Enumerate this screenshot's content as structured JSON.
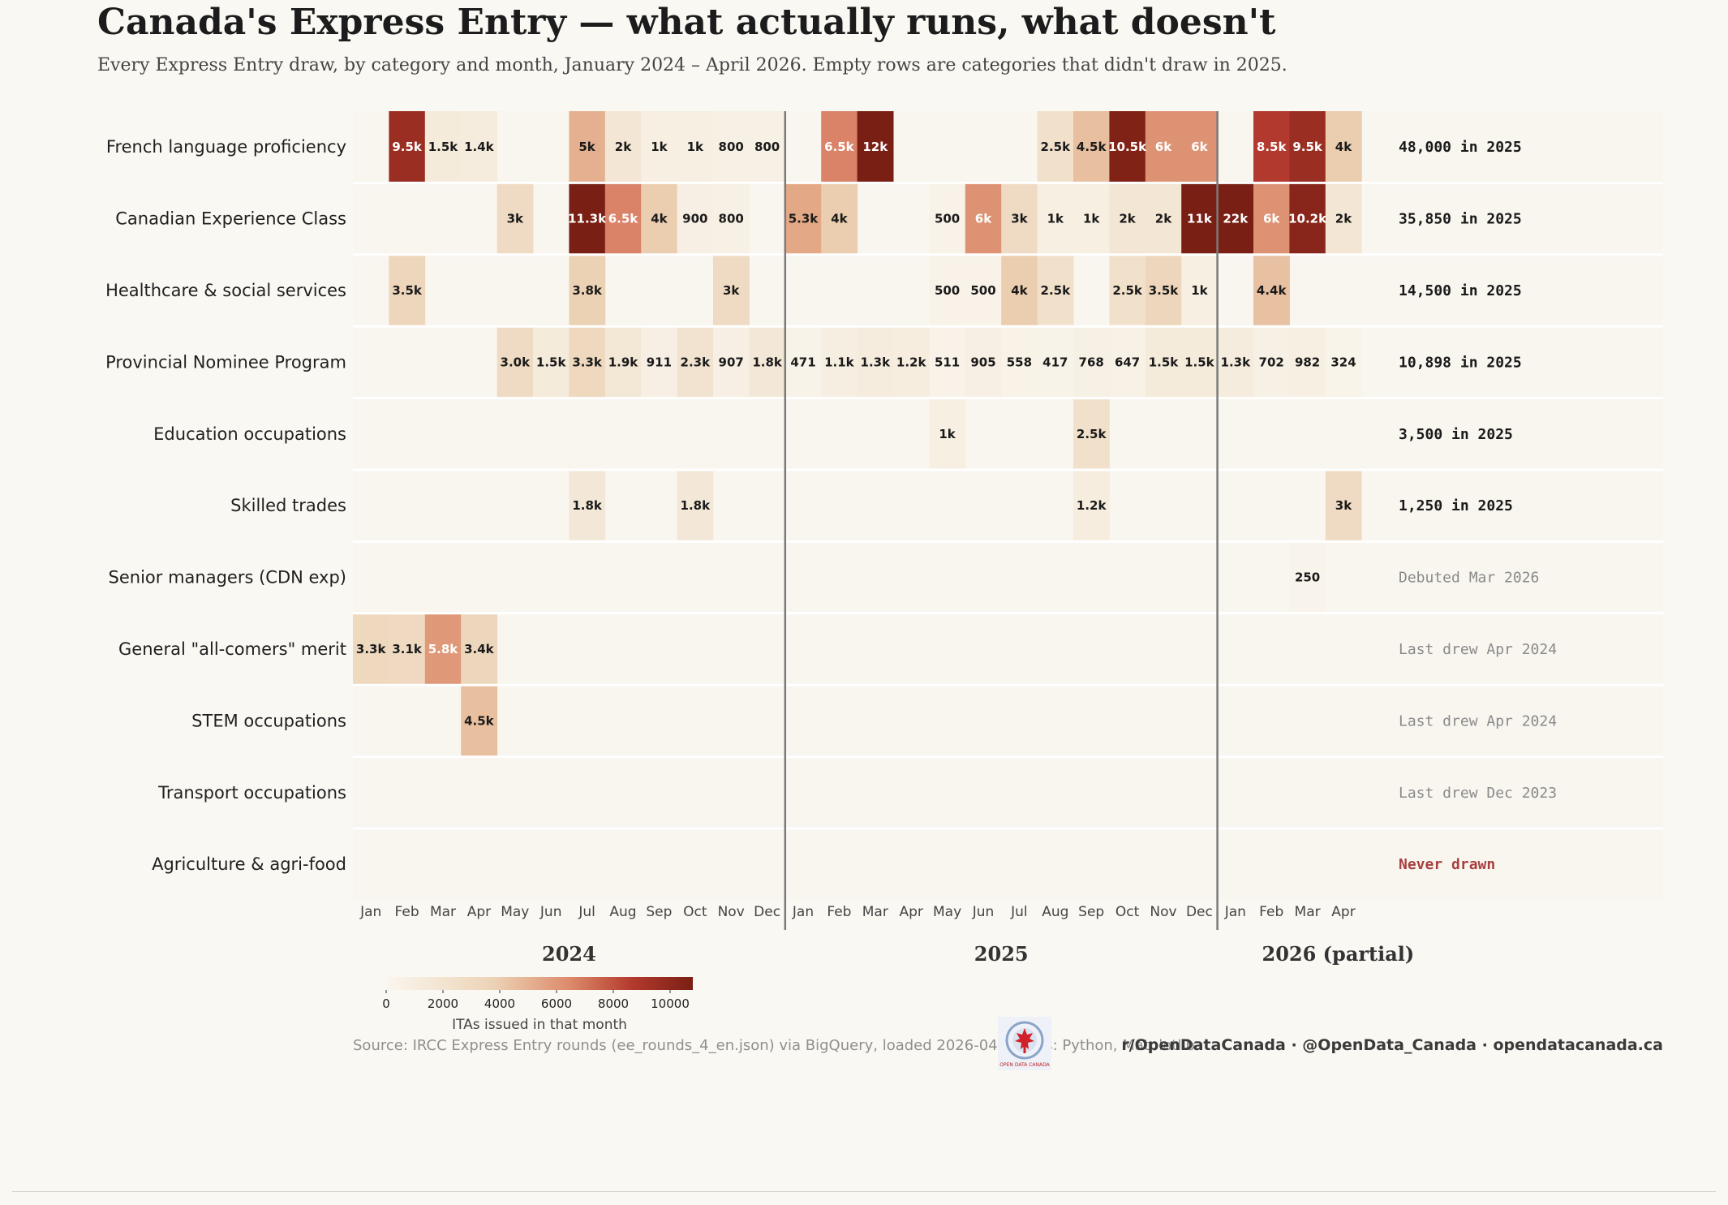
{
  "header": {
    "title": "Canada's Express Entry — what actually runs, what doesn't",
    "subtitle": "Every Express Entry draw, by category and month, January 2024 – April 2026. Empty rows are categories that didn't draw in 2025."
  },
  "footer": {
    "source": "Source: IRCC Express Entry rounds (ee_rounds_4_en.json) via BigQuery, loaded 2026-04-1  Tools: Python, Matplotlib",
    "social": "r/OpenDataCanada  ·  @OpenData_Canada  ·  opendatacanada.ca",
    "logo_text": "OPEN DATA CANADA"
  },
  "colors": {
    "background": "#faf8f3",
    "scale_low": "#faf6ee",
    "scale_high": "#7a1f14",
    "never_drawn": "#a84040",
    "status_active": "#1a1a1a",
    "status_inactive": "#8a8a8a"
  },
  "chart_data": {
    "type": "heatmap",
    "title": "Canada's Express Entry — what actually runs, what doesn't",
    "months": [
      "Jan",
      "Feb",
      "Mar",
      "Apr",
      "May",
      "Jun",
      "Jul",
      "Aug",
      "Sep",
      "Oct",
      "Nov",
      "Dec",
      "Jan",
      "Feb",
      "Mar",
      "Apr",
      "May",
      "Jun",
      "Jul",
      "Aug",
      "Sep",
      "Oct",
      "Nov",
      "Dec",
      "Jan",
      "Feb",
      "Mar",
      "Apr"
    ],
    "years": [
      {
        "label": "2024",
        "months": 12
      },
      {
        "label": "2025",
        "months": 12
      },
      {
        "label": "2026 (partial)",
        "months": 4
      }
    ],
    "colorbar": {
      "label": "ITAs issued in that month",
      "min": 0,
      "max": 10800,
      "ticks": [
        0,
        2000,
        4000,
        6000,
        8000,
        10000
      ]
    },
    "rows": [
      {
        "category": "French language proficiency",
        "values": [
          null,
          9500,
          1500,
          1400,
          null,
          null,
          5000,
          2000,
          1000,
          1000,
          800,
          800,
          null,
          6500,
          12000,
          null,
          null,
          null,
          null,
          2500,
          4500,
          10500,
          6000,
          6000,
          null,
          8500,
          9500,
          4000
        ],
        "labels": [
          null,
          "9.5k",
          "1.5k",
          "1.4k",
          null,
          null,
          "5k",
          "2k",
          "1k",
          "1k",
          "800",
          "800",
          null,
          "6.5k",
          "12k",
          null,
          null,
          null,
          null,
          "2.5k",
          "4.5k",
          "10.5k",
          "6k",
          "6k",
          null,
          "8.5k",
          "9.5k",
          "4k"
        ],
        "status": "48,000 in 2025",
        "status_kind": "active"
      },
      {
        "category": "Canadian Experience Class",
        "values": [
          null,
          null,
          null,
          null,
          3000,
          null,
          11300,
          6500,
          4000,
          900,
          800,
          null,
          5300,
          4000,
          null,
          null,
          500,
          6000,
          3000,
          1000,
          1000,
          2000,
          2000,
          11000,
          22000,
          6000,
          10200,
          2000
        ],
        "labels": [
          null,
          null,
          null,
          null,
          "3k",
          null,
          "11.3k",
          "6.5k",
          "4k",
          "900",
          "800",
          null,
          "5.3k",
          "4k",
          null,
          null,
          "500",
          "6k",
          "3k",
          "1k",
          "1k",
          "2k",
          "2k",
          "11k",
          "22k",
          "6k",
          "10.2k",
          "2k"
        ],
        "status": "35,850 in 2025",
        "status_kind": "active"
      },
      {
        "category": "Healthcare & social services",
        "values": [
          null,
          3500,
          null,
          null,
          null,
          null,
          3800,
          null,
          null,
          null,
          3000,
          null,
          null,
          null,
          null,
          null,
          500,
          500,
          4000,
          2500,
          null,
          2500,
          3500,
          1000,
          null,
          4400,
          null,
          null
        ],
        "labels": [
          null,
          "3.5k",
          null,
          null,
          null,
          null,
          "3.8k",
          null,
          null,
          null,
          "3k",
          null,
          null,
          null,
          null,
          null,
          "500",
          "500",
          "4k",
          "2.5k",
          null,
          "2.5k",
          "3.5k",
          "1k",
          null,
          "4.4k",
          null,
          null
        ],
        "status": "14,500 in 2025",
        "status_kind": "active"
      },
      {
        "category": "Provincial Nominee Program",
        "values": [
          null,
          null,
          null,
          null,
          3000,
          1500,
          3300,
          1900,
          911,
          2300,
          907,
          1800,
          471,
          1100,
          1300,
          1200,
          511,
          905,
          558,
          417,
          768,
          647,
          1500,
          1500,
          1300,
          702,
          982,
          324
        ],
        "labels": [
          null,
          null,
          null,
          null,
          "3.0k",
          "1.5k",
          "3.3k",
          "1.9k",
          "911",
          "2.3k",
          "907",
          "1.8k",
          "471",
          "1.1k",
          "1.3k",
          "1.2k",
          "511",
          "905",
          "558",
          "417",
          "768",
          "647",
          "1.5k",
          "1.5k",
          "1.3k",
          "702",
          "982",
          "324"
        ],
        "status": "10,898 in 2025",
        "status_kind": "active"
      },
      {
        "category": "Education occupations",
        "values": [
          null,
          null,
          null,
          null,
          null,
          null,
          null,
          null,
          null,
          null,
          null,
          null,
          null,
          null,
          null,
          null,
          1000,
          null,
          null,
          null,
          2500,
          null,
          null,
          null,
          null,
          null,
          null,
          null
        ],
        "labels": [
          null,
          null,
          null,
          null,
          null,
          null,
          null,
          null,
          null,
          null,
          null,
          null,
          null,
          null,
          null,
          null,
          "1k",
          null,
          null,
          null,
          "2.5k",
          null,
          null,
          null,
          null,
          null,
          null,
          null
        ],
        "status": "3,500 in 2025",
        "status_kind": "active"
      },
      {
        "category": "Skilled trades",
        "values": [
          null,
          null,
          null,
          null,
          null,
          null,
          1800,
          null,
          null,
          1800,
          null,
          null,
          null,
          null,
          null,
          null,
          null,
          null,
          null,
          null,
          1200,
          null,
          null,
          null,
          null,
          null,
          null,
          3000
        ],
        "labels": [
          null,
          null,
          null,
          null,
          null,
          null,
          "1.8k",
          null,
          null,
          "1.8k",
          null,
          null,
          null,
          null,
          null,
          null,
          null,
          null,
          null,
          null,
          "1.2k",
          null,
          null,
          null,
          null,
          null,
          null,
          "3k"
        ],
        "status": "1,250 in 2025",
        "status_kind": "active"
      },
      {
        "category": "Senior managers (CDN exp)",
        "values": [
          null,
          null,
          null,
          null,
          null,
          null,
          null,
          null,
          null,
          null,
          null,
          null,
          null,
          null,
          null,
          null,
          null,
          null,
          null,
          null,
          null,
          null,
          null,
          null,
          null,
          null,
          250,
          null
        ],
        "labels": [
          null,
          null,
          null,
          null,
          null,
          null,
          null,
          null,
          null,
          null,
          null,
          null,
          null,
          null,
          null,
          null,
          null,
          null,
          null,
          null,
          null,
          null,
          null,
          null,
          null,
          null,
          "250",
          null
        ],
        "status": "Debuted Mar 2026",
        "status_kind": "inactive"
      },
      {
        "category": "General \"all-comers\" merit",
        "values": [
          3300,
          3100,
          5800,
          3400,
          null,
          null,
          null,
          null,
          null,
          null,
          null,
          null,
          null,
          null,
          null,
          null,
          null,
          null,
          null,
          null,
          null,
          null,
          null,
          null,
          null,
          null,
          null,
          null
        ],
        "labels": [
          "3.3k",
          "3.1k",
          "5.8k",
          "3.4k",
          null,
          null,
          null,
          null,
          null,
          null,
          null,
          null,
          null,
          null,
          null,
          null,
          null,
          null,
          null,
          null,
          null,
          null,
          null,
          null,
          null,
          null,
          null,
          null
        ],
        "status": "Last drew Apr 2024",
        "status_kind": "inactive"
      },
      {
        "category": "STEM occupations",
        "values": [
          null,
          null,
          null,
          4500,
          null,
          null,
          null,
          null,
          null,
          null,
          null,
          null,
          null,
          null,
          null,
          null,
          null,
          null,
          null,
          null,
          null,
          null,
          null,
          null,
          null,
          null,
          null,
          null
        ],
        "labels": [
          null,
          null,
          null,
          "4.5k",
          null,
          null,
          null,
          null,
          null,
          null,
          null,
          null,
          null,
          null,
          null,
          null,
          null,
          null,
          null,
          null,
          null,
          null,
          null,
          null,
          null,
          null,
          null,
          null
        ],
        "status": "Last drew Apr 2024",
        "status_kind": "inactive"
      },
      {
        "category": "Transport occupations",
        "values": [
          null,
          null,
          null,
          null,
          null,
          null,
          null,
          null,
          null,
          null,
          null,
          null,
          null,
          null,
          null,
          null,
          null,
          null,
          null,
          null,
          null,
          null,
          null,
          null,
          null,
          null,
          null,
          null
        ],
        "labels": [
          null,
          null,
          null,
          null,
          null,
          null,
          null,
          null,
          null,
          null,
          null,
          null,
          null,
          null,
          null,
          null,
          null,
          null,
          null,
          null,
          null,
          null,
          null,
          null,
          null,
          null,
          null,
          null
        ],
        "status": "Last drew Dec 2023",
        "status_kind": "inactive"
      },
      {
        "category": "Agriculture & agri-food",
        "values": [
          null,
          null,
          null,
          null,
          null,
          null,
          null,
          null,
          null,
          null,
          null,
          null,
          null,
          null,
          null,
          null,
          null,
          null,
          null,
          null,
          null,
          null,
          null,
          null,
          null,
          null,
          null,
          null
        ],
        "labels": [
          null,
          null,
          null,
          null,
          null,
          null,
          null,
          null,
          null,
          null,
          null,
          null,
          null,
          null,
          null,
          null,
          null,
          null,
          null,
          null,
          null,
          null,
          null,
          null,
          null,
          null,
          null,
          null
        ],
        "status": "Never drawn",
        "status_kind": "never"
      }
    ]
  }
}
